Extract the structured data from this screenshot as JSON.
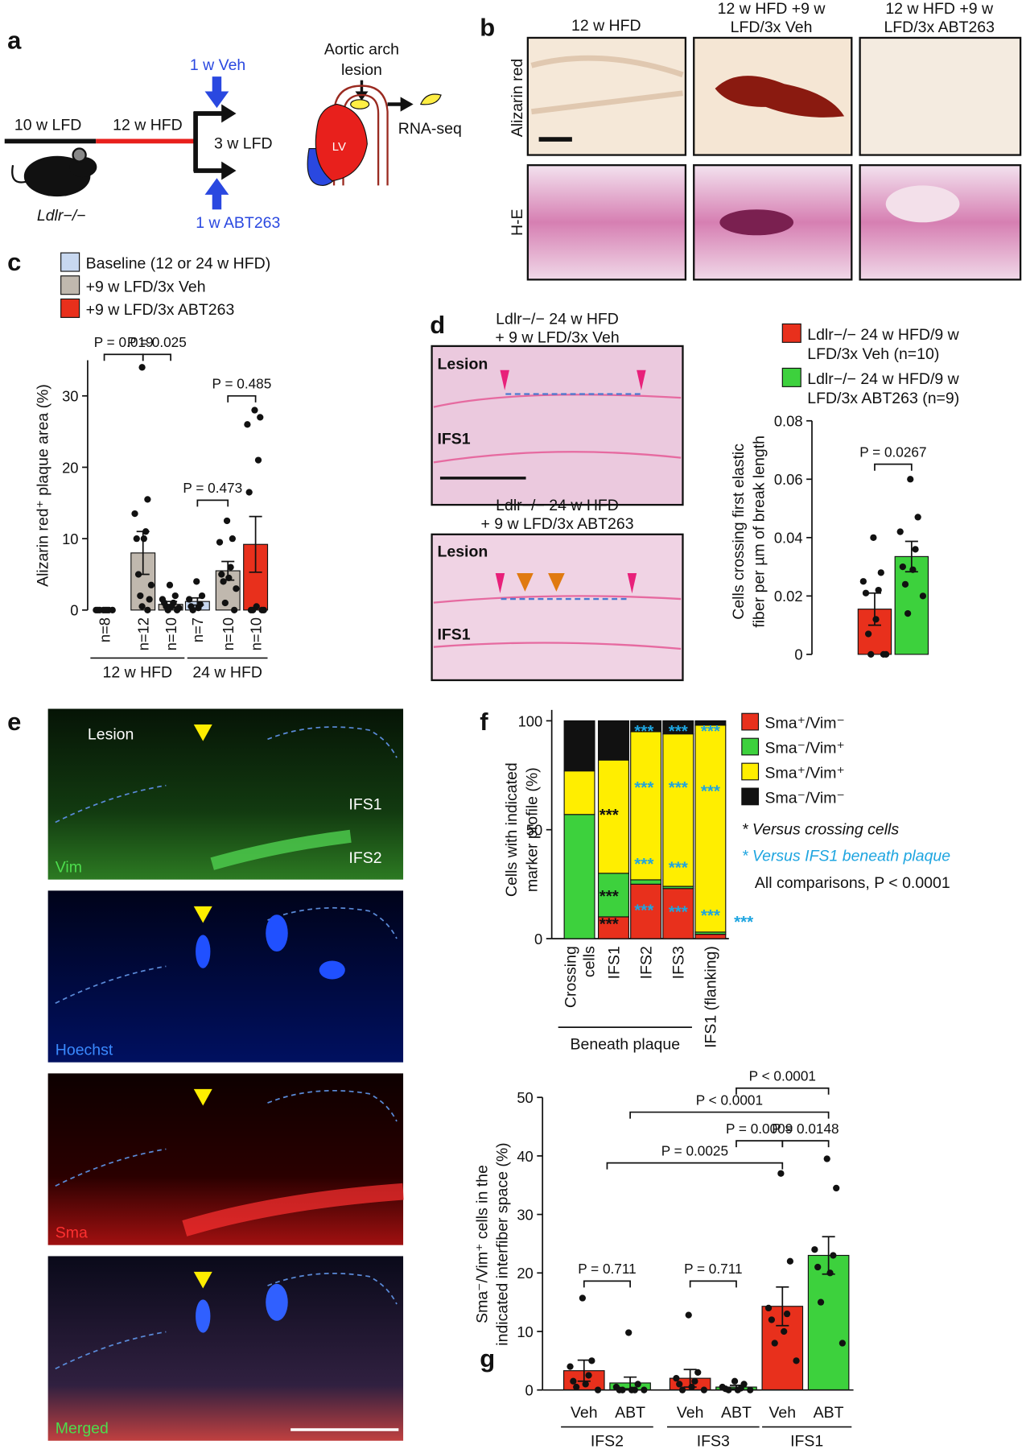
{
  "panel_labels": [
    "a",
    "b",
    "c",
    "d",
    "e",
    "f",
    "g"
  ],
  "panel_a": {
    "veh": "1 w Veh",
    "abt": "1 w ABT263",
    "lfd10": "10 w LFD",
    "hfd12": "12 w HFD",
    "lfd3": "3 w LFD",
    "mouse": "Ldlr−/−",
    "lesion": "Aortic arch lesion",
    "lv": "LV",
    "rnaseq": "RNA-seq"
  },
  "panel_b": {
    "columns": [
      "12 w HFD",
      "12 w HFD +9 w LFD/3x Veh",
      "12 w HFD +9 w LFD/3x ABT263"
    ],
    "rows": [
      "Alizarin red",
      "H-E"
    ]
  },
  "panel_d_images": {
    "titles": [
      "Ldlr−/− 24 w HFD + 9 w LFD/3x Veh",
      "Ldlr−/− 24 w HFD + 9 w LFD/3x ABT263"
    ],
    "labels": [
      [
        "Lesion",
        "IFS1"
      ],
      [
        "Lesion",
        "IFS1"
      ]
    ]
  },
  "panel_e": {
    "lesion": "Lesion",
    "ifs1": "IFS1",
    "ifs2": "IFS2",
    "channels": [
      "Vim",
      "Hoechst",
      "Sma",
      "Merged"
    ]
  },
  "chart_data": [
    {
      "type": "bar",
      "ylabel": "Alizarin red⁺ plaque area (%)",
      "ylim": [
        0,
        35
      ],
      "yticks": [
        0,
        10,
        20,
        30
      ],
      "categories": [
        "n=8",
        "n=12",
        "n=10",
        "n=7",
        "n=10",
        "n=10"
      ],
      "groups": [
        "12 w HFD",
        "24 w HFD"
      ],
      "series": [
        {
          "name": "Baseline (12 or 24 w HFD)",
          "color": "#c8d8f0",
          "values": [
            0,
            null,
            null,
            1.2,
            null,
            null
          ],
          "errors": [
            0,
            null,
            null,
            0.5,
            null,
            null
          ],
          "points": [
            [
              0,
              0,
              0,
              0,
              0,
              0,
              0,
              0
            ],
            null,
            null,
            [
              4,
              2,
              1.5,
              0.8,
              0.5,
              0.3,
              0
            ],
            null,
            null
          ]
        },
        {
          "name": "+9 w LFD/3x Veh",
          "color": "#c0b8ae",
          "values": [
            null,
            8,
            0.8,
            null,
            5.5,
            null
          ],
          "errors": [
            null,
            3,
            0.4,
            null,
            1.3,
            null
          ],
          "points": [
            null,
            [
              34,
              15.5,
              13.5,
              11,
              10,
              10,
              5,
              3.5,
              2,
              1.5,
              0.5,
              0
            ],
            [
              3.5,
              2,
              1.5,
              1,
              1,
              0.5,
              0.5,
              0.3,
              0,
              0
            ],
            null,
            [
              12.5,
              10,
              9.5,
              6,
              5,
              4.5,
              4,
              3,
              1,
              0
            ],
            null
          ]
        },
        {
          "name": "+9 w LFD/3x ABT263",
          "color": "#e8301c",
          "values": [
            null,
            null,
            null,
            null,
            null,
            9.2
          ],
          "errors": [
            null,
            null,
            null,
            null,
            null,
            3.9
          ],
          "points": [
            null,
            null,
            null,
            null,
            null,
            [
              28,
              27,
              26,
              21,
              16.5,
              0.5,
              0,
              0,
              0,
              0
            ]
          ]
        }
      ],
      "annotations": [
        "P = 0.019",
        "P = 0.025",
        "P = 0.473",
        "P = 0.485"
      ]
    },
    {
      "type": "bar",
      "ylabel": "Cells crossing first elastic fiber per µm of break length",
      "ylim": [
        0,
        0.08
      ],
      "yticks": [
        0,
        0.02,
        0.04,
        0.06,
        0.08
      ],
      "series": [
        {
          "name": "Ldlr−/− 24 w HFD/9 w LFD/3x Veh (n=10)",
          "color": "#e8301c",
          "values": [
            0.0155
          ],
          "errors": [
            0.0055
          ],
          "points": [
            [
              0.04,
              0.028,
              0.025,
              0.022,
              0.021,
              0.012,
              0.007,
              0,
              0,
              0
            ]
          ]
        },
        {
          "name": "Ldlr−/− 24 w HFD/9 w LFD/3x ABT263 (n=9)",
          "color": "#3dd13d",
          "values": [
            0.0335
          ],
          "errors": [
            0.0052
          ],
          "points": [
            [
              0.06,
              0.047,
              0.042,
              0.036,
              0.03,
              0.029,
              0.024,
              0.02,
              0.014
            ]
          ]
        }
      ],
      "annotations": [
        "P = 0.0267"
      ]
    },
    {
      "type": "stacked_bar",
      "ylabel": "Cells with indicated marker profile (%)",
      "ylim": [
        0,
        105
      ],
      "yticks": [
        0,
        50,
        100
      ],
      "categories": [
        "Crossing cells",
        "IFS1",
        "IFS2",
        "IFS3",
        "IFS1 (flanking)"
      ],
      "group": "Beneath plaque",
      "series": [
        {
          "name": "Sma⁺/Vim⁻",
          "color": "#e8301c",
          "values": [
            0,
            10,
            25,
            23,
            2
          ]
        },
        {
          "name": "Sma⁻/Vim⁺",
          "color": "#3dd13d",
          "values": [
            57,
            20,
            2,
            1,
            1
          ]
        },
        {
          "name": "Sma⁺/Vim⁺",
          "color": "#ffee00",
          "values": [
            20,
            52,
            68,
            70,
            95
          ]
        },
        {
          "name": "Sma⁻/Vim⁻",
          "color": "#111111",
          "values": [
            23,
            18,
            5,
            6,
            2
          ]
        }
      ],
      "notes": [
        {
          "text": "* Versus crossing cells",
          "color": "#111111"
        },
        {
          "text": "* Versus IFS1 beneath plaque",
          "color": "#1ea5e0"
        },
        {
          "text": "All comparisons, P < 0.0001",
          "color": "#111111"
        }
      ],
      "sig_marks": [
        {
          "text": "***",
          "color": "#111111"
        },
        {
          "text": "***",
          "color": "#111111"
        },
        {
          "text": "***",
          "color": "#111111"
        },
        {
          "text": "***",
          "color": "#1ea5e0"
        },
        {
          "text": "***",
          "color": "#1ea5e0"
        },
        {
          "text": "***",
          "color": "#1ea5e0"
        },
        {
          "text": "***",
          "color": "#1ea5e0"
        },
        {
          "text": "***",
          "color": "#1ea5e0"
        },
        {
          "text": "***",
          "color": "#1ea5e0"
        },
        {
          "text": "***",
          "color": "#1ea5e0"
        },
        {
          "text": "***",
          "color": "#1ea5e0"
        },
        {
          "text": "***",
          "color": "#1ea5e0"
        },
        {
          "text": "***",
          "color": "#1ea5e0"
        },
        {
          "text": "***",
          "color": "#1ea5e0"
        },
        {
          "text": "***",
          "color": "#1ea5e0"
        }
      ]
    },
    {
      "type": "bar",
      "ylabel": "Sma⁻/Vim⁺ cells in the indicated interfiber space (%)",
      "ylim": [
        0,
        50
      ],
      "yticks": [
        0,
        10,
        20,
        30,
        40,
        50
      ],
      "categories": [
        "Veh",
        "ABT",
        "Veh",
        "ABT",
        "Veh",
        "ABT"
      ],
      "groups": [
        "IFS2",
        "IFS3",
        "IFS1"
      ],
      "colors": [
        "#e8301c",
        "#3dd13d",
        "#e8301c",
        "#3dd13d",
        "#e8301c",
        "#3dd13d"
      ],
      "values": [
        3.3,
        1.2,
        2,
        0.5,
        14.3,
        23
      ],
      "errors": [
        1.8,
        1,
        1.5,
        0.3,
        3.3,
        3.2
      ],
      "points": [
        [
          15.7,
          5,
          4,
          2.5,
          1.5,
          1,
          0.5,
          0
        ],
        [
          9.8,
          1,
          0.5,
          0,
          0,
          0,
          0,
          0
        ],
        [
          12.8,
          3,
          2,
          1.5,
          1,
          0.5,
          0,
          0
        ],
        [
          1.5,
          1,
          0.5,
          0.3,
          0.2,
          0,
          0,
          0
        ],
        [
          37,
          22,
          14,
          13,
          12,
          10,
          8,
          5
        ],
        [
          39.5,
          34.5,
          24,
          23,
          21,
          20,
          15,
          8
        ]
      ],
      "annotations": [
        "P = 0.711",
        "P = 0.711",
        "P = 0.0025",
        "P = 0.0009",
        "P = 0.0148",
        "P < 0.0001",
        "P < 0.0001"
      ]
    }
  ]
}
